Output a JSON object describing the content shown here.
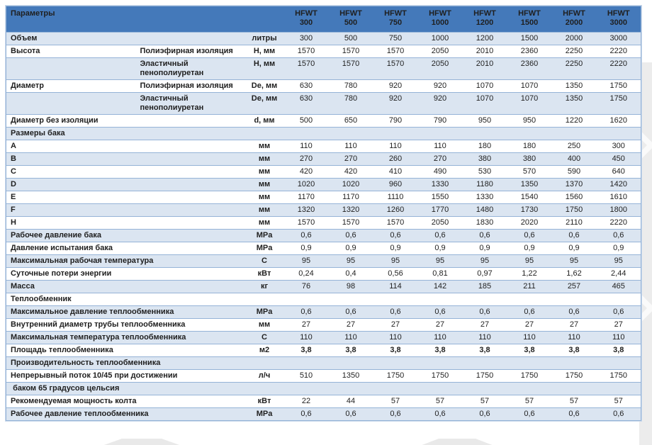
{
  "colors": {
    "header_bg": "#4479BA",
    "header_text": "#FFFFFF",
    "stripe_bg": "#DBE5F1",
    "border": "#95B3D7"
  },
  "table": {
    "header": {
      "param_label": "Параметры",
      "brand": "HFWT",
      "sizes": [
        "300",
        "500",
        "750",
        "1000",
        "1200",
        "1500",
        "2000",
        "3000"
      ]
    },
    "rows": [
      {
        "kind": "data",
        "name": "Объем",
        "sub": null,
        "unit": "литры",
        "values": [
          "300",
          "500",
          "750",
          "1000",
          "1200",
          "1500",
          "2000",
          "3000"
        ]
      },
      {
        "kind": "data",
        "name": "Высота",
        "sub": "Полиэфирная изоляция",
        "unit": "H, мм",
        "values": [
          "1570",
          "1570",
          "1570",
          "2050",
          "2010",
          "2360",
          "2250",
          "2220"
        ]
      },
      {
        "kind": "data",
        "name": "",
        "sub": "Эластичный пенополиуретан",
        "unit": "H, мм",
        "values": [
          "1570",
          "1570",
          "1570",
          "2050",
          "2010",
          "2360",
          "2250",
          "2220"
        ]
      },
      {
        "kind": "data",
        "name": "Диаметр",
        "sub": "Полиэфирная изоляция",
        "unit": "De, мм",
        "values": [
          "630",
          "780",
          "920",
          "920",
          "1070",
          "1070",
          "1350",
          "1750"
        ]
      },
      {
        "kind": "data",
        "name": "",
        "sub": "Эластичный пенополиуретан",
        "unit": "De, мм",
        "values": [
          "630",
          "780",
          "920",
          "920",
          "1070",
          "1070",
          "1350",
          "1750"
        ]
      },
      {
        "kind": "data",
        "name": "Диаметр без изоляции",
        "sub": null,
        "unit": "d, мм",
        "values": [
          "500",
          "650",
          "790",
          "790",
          "950",
          "950",
          "1220",
          "1620"
        ]
      },
      {
        "kind": "section",
        "name": "Размеры бака"
      },
      {
        "kind": "data",
        "name": "A",
        "sub": null,
        "unit": "мм",
        "values": [
          "110",
          "110",
          "110",
          "110",
          "180",
          "180",
          "250",
          "300"
        ]
      },
      {
        "kind": "data",
        "name": "B",
        "sub": null,
        "unit": "мм",
        "values": [
          "270",
          "270",
          "260",
          "270",
          "380",
          "380",
          "400",
          "450"
        ]
      },
      {
        "kind": "data",
        "name": "C",
        "sub": null,
        "unit": "мм",
        "values": [
          "420",
          "420",
          "410",
          "490",
          "530",
          "570",
          "590",
          "640"
        ]
      },
      {
        "kind": "data",
        "name": "D",
        "sub": null,
        "unit": "мм",
        "values": [
          "1020",
          "1020",
          "960",
          "1330",
          "1180",
          "1350",
          "1370",
          "1420"
        ]
      },
      {
        "kind": "data",
        "name": "E",
        "sub": null,
        "unit": "мм",
        "values": [
          "1170",
          "1170",
          "1110",
          "1550",
          "1330",
          "1540",
          "1560",
          "1610"
        ]
      },
      {
        "kind": "data",
        "name": "F",
        "sub": null,
        "unit": "мм",
        "values": [
          "1320",
          "1320",
          "1260",
          "1770",
          "1480",
          "1730",
          "1750",
          "1800"
        ]
      },
      {
        "kind": "data",
        "name": "H",
        "sub": null,
        "unit": "мм",
        "values": [
          "1570",
          "1570",
          "1570",
          "2050",
          "1830",
          "2020",
          "2110",
          "2220"
        ]
      },
      {
        "kind": "data",
        "name": "Рабочее давление бака",
        "sub": null,
        "unit": "MPa",
        "values": [
          "0,6",
          "0,6",
          "0,6",
          "0,6",
          "0,6",
          "0,6",
          "0,6",
          "0,6"
        ]
      },
      {
        "kind": "data",
        "name": "Давление испытания бака",
        "sub": null,
        "unit": "MPa",
        "values": [
          "0,9",
          "0,9",
          "0,9",
          "0,9",
          "0,9",
          "0,9",
          "0,9",
          "0,9"
        ]
      },
      {
        "kind": "data",
        "name": "Максимальная рабочая температура",
        "sub": null,
        "unit": "C",
        "values": [
          "95",
          "95",
          "95",
          "95",
          "95",
          "95",
          "95",
          "95"
        ]
      },
      {
        "kind": "data",
        "name": "Суточные потери энергии",
        "sub": null,
        "unit": "кВт",
        "values": [
          "0,24",
          "0,4",
          "0,56",
          "0,81",
          "0,97",
          "1,22",
          "1,62",
          "2,44"
        ]
      },
      {
        "kind": "data",
        "name": "Масса",
        "sub": null,
        "unit": "кг",
        "values": [
          "76",
          "98",
          "114",
          "142",
          "185",
          "211",
          "257",
          "465"
        ]
      },
      {
        "kind": "section",
        "name": "Теплообменник"
      },
      {
        "kind": "data",
        "name": "Максимальное давление теплообменника",
        "sub": null,
        "unit": "MPa",
        "values": [
          "0,6",
          "0,6",
          "0,6",
          "0,6",
          "0,6",
          "0,6",
          "0,6",
          "0,6"
        ]
      },
      {
        "kind": "data",
        "name": "Внутренний диаметр трубы теплообменника",
        "sub": null,
        "unit": "мм",
        "values": [
          "27",
          "27",
          "27",
          "27",
          "27",
          "27",
          "27",
          "27"
        ]
      },
      {
        "kind": "data",
        "name": "Максимальная температура теплообменника",
        "sub": null,
        "unit": "C",
        "values": [
          "110",
          "110",
          "110",
          "110",
          "110",
          "110",
          "110",
          "110"
        ]
      },
      {
        "kind": "data",
        "name": "Площадь теплообменника",
        "sub": null,
        "unit": "м2",
        "bold_values": true,
        "values": [
          "3,8",
          "3,8",
          "3,8",
          "3,8",
          "3,8",
          "3,8",
          "3,8",
          "3,8"
        ]
      },
      {
        "kind": "section",
        "name": "Производительность теплообменника"
      },
      {
        "kind": "data",
        "name": "Непрерывный поток 10/45 при достижении",
        "sub": null,
        "unit": "л/ч",
        "values": [
          "510",
          "1350",
          "1750",
          "1750",
          "1750",
          "1750",
          "1750",
          "1750"
        ]
      },
      {
        "kind": "section",
        "name": " баком 65 градусов цельсия"
      },
      {
        "kind": "data",
        "name": "Рекомендуемая мощность колта",
        "sub": null,
        "unit": "кВт",
        "values": [
          "22",
          "44",
          "57",
          "57",
          "57",
          "57",
          "57",
          "57"
        ]
      },
      {
        "kind": "data",
        "name": "Рабочее давление теплообменника",
        "sub": null,
        "unit": "MPa",
        "values": [
          "0,6",
          "0,6",
          "0,6",
          "0,6",
          "0,6",
          "0,6",
          "0,6",
          "0,6"
        ]
      }
    ]
  }
}
